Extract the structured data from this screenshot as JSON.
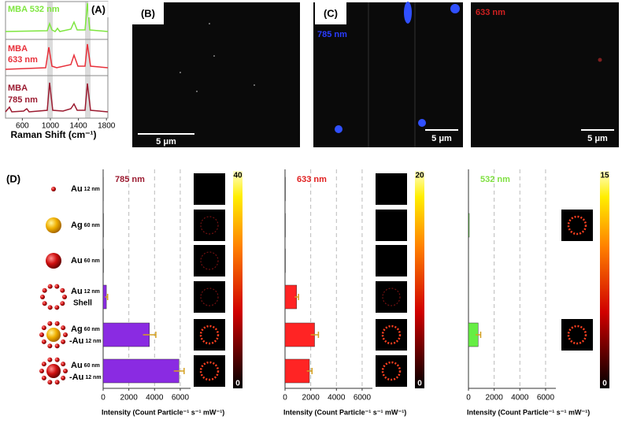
{
  "panel_a": {
    "label": "(A)",
    "spectra": [
      {
        "lines": [
          "MBA 532 nm"
        ],
        "color": "#7fe640"
      },
      {
        "lines": [
          "MBA",
          "633 nm"
        ],
        "color": "#e8303a"
      },
      {
        "lines": [
          "MBA",
          "785 nm"
        ],
        "color": "#9b1b30"
      }
    ],
    "xlabel": "Raman Shift (cm⁻¹)",
    "xlim": [
      360,
      1820
    ],
    "xticks": [
      600,
      1000,
      1400,
      1800
    ]
  },
  "panel_b": {
    "label": "(B)",
    "scale": "5 μm"
  },
  "panel_c": {
    "label": "(C)",
    "images": [
      {
        "laser": "785 nm",
        "color": "#2a3cff",
        "scale": "5 μm"
      },
      {
        "laser": "633 nm",
        "color": "#d02020",
        "scale": "5 μm"
      }
    ]
  },
  "panel_d": {
    "label": "(D)",
    "particles": [
      {
        "name": "Au",
        "size": "12 nm"
      },
      {
        "name": "Ag",
        "size": "60 nm"
      },
      {
        "name": "Au",
        "size": "60 nm"
      },
      {
        "name": "Au",
        "size": "12 nm",
        "extra": "Shell"
      },
      {
        "name": "Ag",
        "size": "60 nm",
        "name2": "-Au",
        "size2": "12 nm"
      },
      {
        "name": "Au",
        "size": "60 nm",
        "name2": "-Au",
        "size2": "12 nm"
      }
    ]
  },
  "chart_data": [
    {
      "type": "bar",
      "title": "785 nm",
      "title_color": "#9b1b30",
      "color": "#8a2be2",
      "values": [
        20,
        30,
        30,
        250,
        3600,
        5900
      ],
      "errors": [
        0,
        0,
        0,
        100,
        500,
        400
      ],
      "xlim": [
        0,
        6800
      ],
      "xticks": [
        0,
        2000,
        4000,
        6000
      ],
      "grid": true,
      "xlabel": "Intensity (Count Particle⁻¹ s⁻¹ mW⁻¹)",
      "colorbar": {
        "lim": [
          0,
          40
        ],
        "ticks": [
          0,
          40
        ]
      }
    },
    {
      "type": "bar",
      "title": "633 nm",
      "title_color": "#e02020",
      "color": "#ff2424",
      "values": [
        30,
        30,
        30,
        900,
        2300,
        1900
      ],
      "errors": [
        0,
        0,
        0,
        150,
        300,
        200
      ],
      "xlim": [
        0,
        6800
      ],
      "xticks": [
        0,
        2000,
        4000,
        6000
      ],
      "grid": true,
      "xlabel": "Intensity (Count Particle⁻¹ s⁻¹ mW⁻¹)",
      "colorbar": {
        "lim": [
          0,
          20
        ],
        "ticks": [
          0,
          20
        ]
      }
    },
    {
      "type": "bar",
      "title": "532 nm",
      "title_color": "#7fe040",
      "color": "#66ee44",
      "values": [
        10,
        60,
        10,
        10,
        750,
        10
      ],
      "errors": [
        0,
        0,
        0,
        0,
        200,
        0
      ],
      "xlim": [
        0,
        6800
      ],
      "xticks": [
        0,
        2000,
        4000,
        6000
      ],
      "grid": true,
      "xlabel": "Intensity (Count Particle⁻¹ s⁻¹ mW⁻¹)",
      "colorbar": {
        "lim": [
          0,
          15
        ],
        "ticks": [
          0,
          15
        ]
      }
    }
  ]
}
